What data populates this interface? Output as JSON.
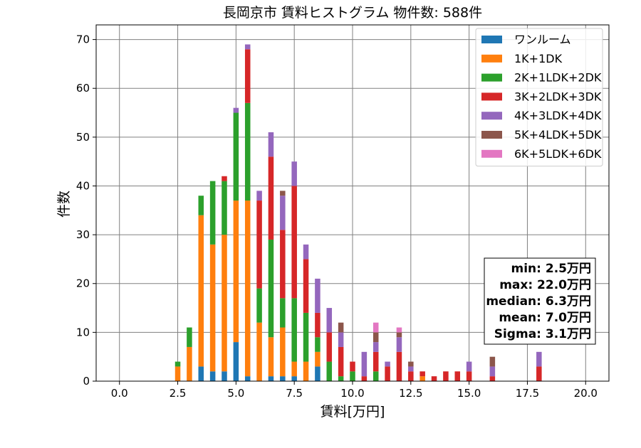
{
  "chart_data": {
    "type": "bar",
    "stacked": true,
    "title": "長岡京市 賃料ヒストグラム  物件数: 588件",
    "xlabel": "賃料[万円]",
    "ylabel": "件数",
    "xlim": [
      -1.0,
      21.0
    ],
    "ylim": [
      0,
      73
    ],
    "xticks": [
      0.0,
      2.5,
      5.0,
      7.5,
      10.0,
      12.5,
      15.0,
      17.5,
      20.0
    ],
    "xtick_labels": [
      "0.0",
      "2.5",
      "5.0",
      "7.5",
      "10.0",
      "12.5",
      "15.0",
      "17.5",
      "20.0"
    ],
    "yticks": [
      0,
      10,
      20,
      30,
      40,
      50,
      60,
      70
    ],
    "ytick_labels": [
      "0",
      "10",
      "20",
      "30",
      "40",
      "50",
      "60",
      "70"
    ],
    "grid": true,
    "legend_position": "top-right",
    "bin_width": 0.25,
    "x": [
      2.5,
      3.0,
      3.5,
      4.0,
      4.5,
      5.0,
      5.5,
      6.0,
      6.5,
      7.0,
      7.5,
      8.0,
      8.5,
      9.0,
      9.5,
      10.0,
      10.5,
      11.0,
      11.5,
      12.0,
      12.5,
      13.0,
      13.5,
      14.0,
      14.5,
      15.0,
      16.0,
      18.0
    ],
    "series": [
      {
        "name": "ワンルーム",
        "color": "#1f77b4",
        "values": [
          0,
          0,
          3,
          2,
          2,
          8,
          1,
          0,
          1,
          1,
          1,
          0,
          3,
          0,
          0,
          0,
          0,
          0,
          0,
          0,
          0,
          0,
          0,
          0,
          0,
          0,
          0,
          0
        ]
      },
      {
        "name": "1K+1DK",
        "color": "#ff7f0e",
        "values": [
          3,
          7,
          31,
          26,
          28,
          29,
          36,
          12,
          8,
          10,
          3,
          4,
          3,
          0,
          0,
          0,
          0,
          0,
          0,
          0,
          0,
          1,
          0,
          0,
          0,
          0,
          0,
          0
        ]
      },
      {
        "name": "2K+1LDK+2DK",
        "color": "#2ca02c",
        "values": [
          1,
          4,
          4,
          13,
          11,
          18,
          20,
          7,
          20,
          6,
          13,
          10,
          3,
          4,
          1,
          2,
          0,
          2,
          0,
          0,
          0,
          0,
          0,
          0,
          0,
          0,
          0,
          0
        ]
      },
      {
        "name": "3K+2LDK+3DK",
        "color": "#d62728",
        "values": [
          0,
          0,
          0,
          0,
          1,
          0,
          11,
          18,
          17,
          14,
          23,
          11,
          5,
          6,
          6,
          2,
          1,
          4,
          3,
          6,
          2,
          1,
          1,
          2,
          2,
          2,
          1,
          3
        ]
      },
      {
        "name": "4K+3LDK+4DK",
        "color": "#9467bd",
        "values": [
          0,
          0,
          0,
          0,
          0,
          1,
          1,
          2,
          5,
          7,
          5,
          3,
          7,
          5,
          3,
          0,
          5,
          2,
          1,
          3,
          1,
          0,
          0,
          0,
          0,
          2,
          2,
          3
        ]
      },
      {
        "name": "5K+4LDK+5DK",
        "color": "#8c564b",
        "values": [
          0,
          0,
          0,
          0,
          0,
          0,
          0,
          0,
          0,
          1,
          0,
          0,
          0,
          0,
          2,
          0,
          0,
          2,
          0,
          1,
          1,
          0,
          0,
          0,
          0,
          0,
          2,
          0
        ]
      },
      {
        "name": "6K+5LDK+6DK",
        "color": "#e377c2",
        "values": [
          0,
          0,
          0,
          0,
          0,
          0,
          0,
          0,
          0,
          0,
          0,
          0,
          0,
          0,
          0,
          0,
          0,
          2,
          0,
          1,
          0,
          0,
          0,
          0,
          0,
          0,
          0,
          0
        ]
      }
    ],
    "stats": [
      "min: 2.5万円",
      "max: 22.0万円",
      "median: 6.3万円",
      "mean: 7.0万円",
      "Sigma: 3.1万円"
    ]
  }
}
